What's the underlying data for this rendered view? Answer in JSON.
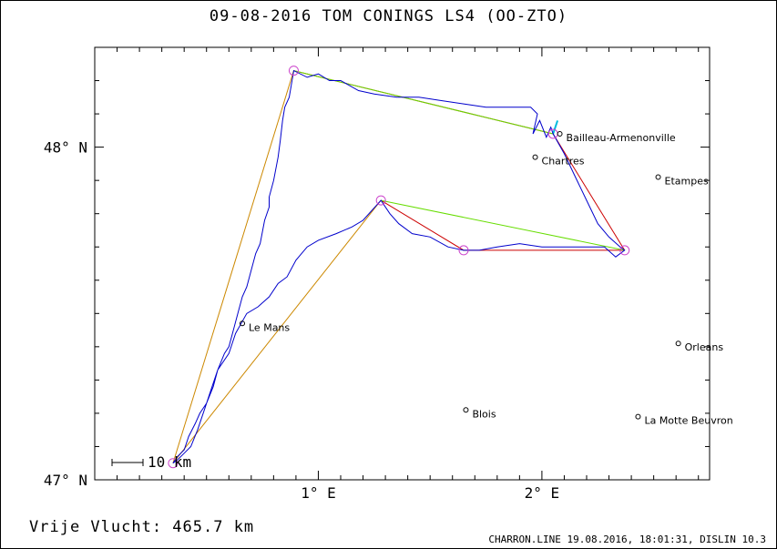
{
  "title": "09-08-2016    TOM CONINGS   LS4 (OO-ZTO)",
  "footer": {
    "distance": "Vrije Vlucht:  465.7 km",
    "credits": "CHARRON.LINE 19.08.2016, 18:01:31, DISLIN 10.3"
  },
  "axes": {
    "x_ticks": [
      {
        "value": 1,
        "label": "1° E"
      },
      {
        "value": 2,
        "label": "2° E"
      }
    ],
    "y_ticks": [
      {
        "value": 47,
        "label": "47° N"
      },
      {
        "value": 48,
        "label": "48° N"
      }
    ],
    "xlim": [
      0.0,
      2.75
    ],
    "ylim": [
      47.0,
      48.3
    ]
  },
  "scale_bar": {
    "label": "10 km"
  },
  "cities": [
    {
      "name": "Bailleau-Armenonville",
      "lon": 2.08,
      "lat": 48.04
    },
    {
      "name": "Chartres",
      "lon": 1.97,
      "lat": 47.97
    },
    {
      "name": "Etampes",
      "lon": 2.52,
      "lat": 47.91
    },
    {
      "name": "Le Mans",
      "lon": 0.66,
      "lat": 47.47
    },
    {
      "name": "Orleans",
      "lon": 2.61,
      "lat": 47.41
    },
    {
      "name": "Blois",
      "lon": 1.66,
      "lat": 47.21
    },
    {
      "name": "La Motte Beuvron",
      "lon": 2.43,
      "lat": 47.19
    }
  ],
  "turnpoints": [
    {
      "lon": 0.35,
      "lat": 47.05
    },
    {
      "lon": 0.89,
      "lat": 48.23
    },
    {
      "lon": 2.05,
      "lat": 48.04
    },
    {
      "lon": 2.37,
      "lat": 47.69
    },
    {
      "lon": 1.65,
      "lat": 47.69
    },
    {
      "lon": 1.28,
      "lat": 47.84
    }
  ],
  "colors": {
    "track": "#0000cc",
    "route_red": "#cc0000",
    "route_green": "#66dd00",
    "route_orange": "#cc8800",
    "turnpoint": "#cc44cc",
    "start": "#00bbdd"
  },
  "track": [
    [
      0.35,
      47.05
    ],
    [
      0.37,
      47.07
    ],
    [
      0.4,
      47.09
    ],
    [
      0.42,
      47.13
    ],
    [
      0.45,
      47.17
    ],
    [
      0.47,
      47.2
    ],
    [
      0.5,
      47.23
    ],
    [
      0.53,
      47.28
    ],
    [
      0.55,
      47.33
    ],
    [
      0.58,
      47.38
    ],
    [
      0.6,
      47.4
    ],
    [
      0.62,
      47.45
    ],
    [
      0.64,
      47.5
    ],
    [
      0.66,
      47.55
    ],
    [
      0.68,
      47.58
    ],
    [
      0.7,
      47.63
    ],
    [
      0.72,
      47.68
    ],
    [
      0.74,
      47.71
    ],
    [
      0.76,
      47.78
    ],
    [
      0.78,
      47.82
    ],
    [
      0.78,
      47.85
    ],
    [
      0.8,
      47.9
    ],
    [
      0.82,
      47.97
    ],
    [
      0.83,
      48.02
    ],
    [
      0.84,
      48.08
    ],
    [
      0.85,
      48.12
    ],
    [
      0.87,
      48.15
    ],
    [
      0.88,
      48.19
    ],
    [
      0.89,
      48.23
    ],
    [
      0.95,
      48.21
    ],
    [
      1.0,
      48.22
    ],
    [
      1.05,
      48.2
    ],
    [
      1.1,
      48.2
    ],
    [
      1.18,
      48.17
    ],
    [
      1.25,
      48.16
    ],
    [
      1.35,
      48.15
    ],
    [
      1.45,
      48.15
    ],
    [
      1.55,
      48.14
    ],
    [
      1.65,
      48.13
    ],
    [
      1.75,
      48.12
    ],
    [
      1.85,
      48.12
    ],
    [
      1.95,
      48.12
    ],
    [
      1.98,
      48.1
    ],
    [
      1.96,
      48.04
    ],
    [
      1.99,
      48.08
    ],
    [
      2.02,
      48.03
    ],
    [
      2.04,
      48.06
    ],
    [
      2.05,
      48.04
    ],
    [
      2.1,
      47.98
    ],
    [
      2.15,
      47.91
    ],
    [
      2.2,
      47.84
    ],
    [
      2.25,
      47.77
    ],
    [
      2.3,
      47.73
    ],
    [
      2.35,
      47.7
    ],
    [
      2.37,
      47.69
    ],
    [
      2.33,
      47.67
    ],
    [
      2.28,
      47.7
    ],
    [
      2.2,
      47.7
    ],
    [
      2.1,
      47.7
    ],
    [
      2.0,
      47.7
    ],
    [
      1.9,
      47.71
    ],
    [
      1.8,
      47.7
    ],
    [
      1.72,
      47.69
    ],
    [
      1.65,
      47.69
    ],
    [
      1.58,
      47.7
    ],
    [
      1.5,
      47.73
    ],
    [
      1.42,
      47.74
    ],
    [
      1.36,
      47.77
    ],
    [
      1.32,
      47.8
    ],
    [
      1.28,
      47.84
    ],
    [
      1.24,
      47.81
    ],
    [
      1.2,
      47.78
    ],
    [
      1.15,
      47.76
    ],
    [
      1.08,
      47.74
    ],
    [
      1.0,
      47.72
    ],
    [
      0.95,
      47.7
    ],
    [
      0.9,
      47.66
    ],
    [
      0.86,
      47.61
    ],
    [
      0.82,
      47.59
    ],
    [
      0.78,
      47.55
    ],
    [
      0.73,
      47.52
    ],
    [
      0.68,
      47.5
    ],
    [
      0.63,
      47.44
    ],
    [
      0.6,
      47.38
    ],
    [
      0.55,
      47.33
    ],
    [
      0.52,
      47.27
    ],
    [
      0.49,
      47.21
    ],
    [
      0.46,
      47.15
    ],
    [
      0.43,
      47.1
    ],
    [
      0.4,
      47.08
    ],
    [
      0.37,
      47.06
    ],
    [
      0.35,
      47.05
    ]
  ]
}
